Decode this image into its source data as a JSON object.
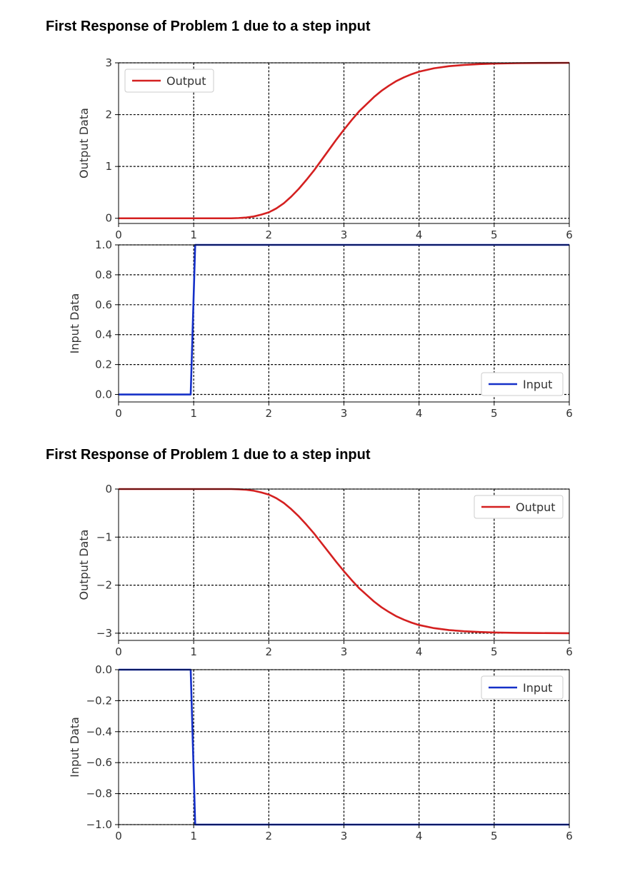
{
  "headings": [
    "First Response of Problem 1 due to a step input",
    "First Response of Problem 1 due to a step input"
  ],
  "colors": {
    "output": "#d42020",
    "input": "#1530c8"
  },
  "chart_data": [
    {
      "type": "line",
      "title": "First Response of Problem 1 due to a step input",
      "xlabel": "",
      "ylabel": "Output Data",
      "xlim": [
        0,
        6
      ],
      "ylim": [
        -0.1,
        3.0
      ],
      "xticks": [
        0,
        1,
        2,
        3,
        4,
        5,
        6
      ],
      "xtick_labels": [
        "0",
        "1",
        "2",
        "3",
        "4",
        "5",
        "6"
      ],
      "yticks": [
        0,
        1,
        2,
        3
      ],
      "ytick_labels": [
        "0",
        "1",
        "2",
        "3"
      ],
      "grid": true,
      "legend": "top-left",
      "series": [
        {
          "name": "Output",
          "color": "#d42020",
          "x": [
            0,
            0.5,
            1,
            1.25,
            1.5,
            1.6,
            1.7,
            1.8,
            1.9,
            2.0,
            2.1,
            2.2,
            2.3,
            2.4,
            2.5,
            2.6,
            2.7,
            2.8,
            2.9,
            3.0,
            3.1,
            3.2,
            3.3,
            3.4,
            3.5,
            3.6,
            3.7,
            3.8,
            3.9,
            4.0,
            4.2,
            4.4,
            4.6,
            4.8,
            5.0,
            5.3,
            5.6,
            6.0
          ],
          "y": [
            0,
            0,
            0,
            0,
            0,
            0.005,
            0.015,
            0.035,
            0.07,
            0.115,
            0.19,
            0.29,
            0.42,
            0.57,
            0.74,
            0.92,
            1.12,
            1.32,
            1.52,
            1.71,
            1.89,
            2.06,
            2.2,
            2.34,
            2.46,
            2.56,
            2.65,
            2.72,
            2.78,
            2.83,
            2.895,
            2.935,
            2.96,
            2.975,
            2.985,
            2.993,
            2.997,
            3.0
          ]
        }
      ]
    },
    {
      "type": "line",
      "xlabel": "",
      "ylabel": "Input Data",
      "xlim": [
        0,
        6
      ],
      "ylim": [
        -0.05,
        1.0
      ],
      "xticks": [
        0,
        1,
        2,
        3,
        4,
        5,
        6
      ],
      "xtick_labels": [
        "0",
        "1",
        "2",
        "3",
        "4",
        "5",
        "6"
      ],
      "yticks": [
        0,
        0.2,
        0.4,
        0.6,
        0.8,
        1.0
      ],
      "ytick_labels": [
        "0.0",
        "0.2",
        "0.4",
        "0.6",
        "0.8",
        "1.0"
      ],
      "grid": true,
      "legend": "bottom-right",
      "series": [
        {
          "name": "Input",
          "color": "#1530c8",
          "x": [
            0,
            0.96,
            1.02,
            6
          ],
          "y": [
            0,
            0,
            1,
            1
          ]
        }
      ]
    },
    {
      "type": "line",
      "title": "First Response of Problem 1 due to a step input",
      "xlabel": "",
      "ylabel": "Output Data",
      "xlim": [
        0,
        6
      ],
      "ylim": [
        -3.15,
        0.0
      ],
      "xticks": [
        0,
        1,
        2,
        3,
        4,
        5,
        6
      ],
      "xtick_labels": [
        "0",
        "1",
        "2",
        "3",
        "4",
        "5",
        "6"
      ],
      "yticks": [
        0,
        -1,
        -2,
        -3
      ],
      "ytick_labels": [
        "0",
        "−1",
        "−2",
        "−3"
      ],
      "grid": true,
      "legend": "top-right",
      "series": [
        {
          "name": "Output",
          "color": "#d42020",
          "x": [
            0,
            0.5,
            1,
            1.25,
            1.5,
            1.6,
            1.7,
            1.8,
            1.9,
            2.0,
            2.1,
            2.2,
            2.3,
            2.4,
            2.5,
            2.6,
            2.7,
            2.8,
            2.9,
            3.0,
            3.1,
            3.2,
            3.3,
            3.4,
            3.5,
            3.6,
            3.7,
            3.8,
            3.9,
            4.0,
            4.2,
            4.4,
            4.6,
            4.8,
            5.0,
            5.3,
            5.6,
            6.0
          ],
          "y": [
            0,
            0,
            0,
            0,
            0,
            -0.005,
            -0.015,
            -0.035,
            -0.07,
            -0.115,
            -0.19,
            -0.29,
            -0.42,
            -0.57,
            -0.74,
            -0.92,
            -1.12,
            -1.32,
            -1.52,
            -1.71,
            -1.89,
            -2.06,
            -2.2,
            -2.34,
            -2.46,
            -2.56,
            -2.65,
            -2.72,
            -2.78,
            -2.83,
            -2.895,
            -2.935,
            -2.96,
            -2.975,
            -2.985,
            -2.993,
            -2.997,
            -3.0
          ]
        }
      ]
    },
    {
      "type": "line",
      "xlabel": "",
      "ylabel": "Input Data",
      "xlim": [
        0,
        6
      ],
      "ylim": [
        -1.0,
        0.0
      ],
      "xticks": [
        0,
        1,
        2,
        3,
        4,
        5,
        6
      ],
      "xtick_labels": [
        "0",
        "1",
        "2",
        "3",
        "4",
        "5",
        "6"
      ],
      "yticks": [
        0,
        -0.2,
        -0.4,
        -0.6,
        -0.8,
        -1.0
      ],
      "ytick_labels": [
        "0.0",
        "−0.2",
        "−0.4",
        "−0.6",
        "−0.8",
        "−1.0"
      ],
      "grid": true,
      "legend": "top-right",
      "series": [
        {
          "name": "Input",
          "color": "#1530c8",
          "x": [
            0,
            0.96,
            1.02,
            6
          ],
          "y": [
            0,
            0,
            -1,
            -1
          ]
        }
      ]
    }
  ]
}
